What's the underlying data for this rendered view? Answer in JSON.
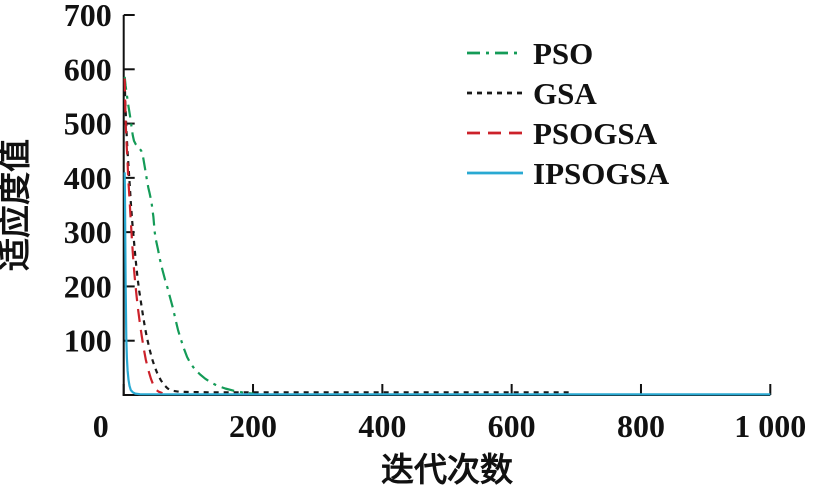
{
  "figure": {
    "background": "#ffffff",
    "axis_color": "#111111"
  },
  "chart_data": {
    "type": "line",
    "title": "",
    "xlabel": "迭代次数",
    "ylabel": "适应度值",
    "xlim": [
      0,
      1000
    ],
    "ylim": [
      0,
      700
    ],
    "grid": false,
    "legend_position": "upper-right-inside-no-border",
    "x_ticks": [
      {
        "value": 0,
        "label": "0"
      },
      {
        "value": 200,
        "label": "200"
      },
      {
        "value": 400,
        "label": "400"
      },
      {
        "value": 600,
        "label": "600"
      },
      {
        "value": 800,
        "label": "800"
      },
      {
        "value": 1000,
        "label": "1 000"
      }
    ],
    "y_ticks": [
      {
        "value": 100,
        "label": "100"
      },
      {
        "value": 200,
        "label": "200"
      },
      {
        "value": 300,
        "label": "300"
      },
      {
        "value": 400,
        "label": "400"
      },
      {
        "value": 500,
        "label": "500"
      },
      {
        "value": 600,
        "label": "600"
      },
      {
        "value": 700,
        "label": "700"
      }
    ],
    "series": [
      {
        "name": "PSO",
        "color": "#149b57",
        "line_style": "dash-dot",
        "points": [
          [
            1.5,
            586
          ],
          [
            3,
            570
          ],
          [
            5,
            552
          ],
          [
            7,
            535
          ],
          [
            9,
            520
          ],
          [
            11,
            505
          ],
          [
            12.5,
            490
          ],
          [
            14,
            478
          ],
          [
            16,
            468
          ],
          [
            19,
            461
          ],
          [
            23,
            456
          ],
          [
            27,
            450
          ],
          [
            30,
            438
          ],
          [
            32,
            424
          ],
          [
            34,
            410
          ],
          [
            36,
            395
          ],
          [
            38,
            382
          ],
          [
            40,
            372
          ],
          [
            43,
            355
          ],
          [
            46,
            328
          ],
          [
            48,
            300
          ],
          [
            50,
            285
          ],
          [
            53,
            268
          ],
          [
            56,
            250
          ],
          [
            60,
            230
          ],
          [
            64,
            212
          ],
          [
            68,
            196
          ],
          [
            72,
            178
          ],
          [
            76,
            161
          ],
          [
            80,
            140
          ],
          [
            84,
            120
          ],
          [
            88,
            104
          ],
          [
            93,
            86
          ],
          [
            98,
            70
          ],
          [
            104,
            57
          ],
          [
            111,
            46
          ],
          [
            118,
            38
          ],
          [
            126,
            30
          ],
          [
            135,
            23
          ],
          [
            145,
            17
          ],
          [
            157,
            12
          ],
          [
            170,
            8
          ],
          [
            183,
            5
          ],
          [
            196,
            3
          ],
          [
            208,
            2
          ]
        ]
      },
      {
        "name": "GSA",
        "color": "#1a1a1a",
        "line_style": "dotted",
        "points": [
          [
            1.5,
            578
          ],
          [
            2.5,
            540
          ],
          [
            3.5,
            508
          ],
          [
            5,
            470
          ],
          [
            6.5,
            438
          ],
          [
            8,
            410
          ],
          [
            9.5,
            385
          ],
          [
            11,
            355
          ],
          [
            13,
            322
          ],
          [
            15,
            295
          ],
          [
            17,
            268
          ],
          [
            19,
            243
          ],
          [
            21.5,
            215
          ],
          [
            24,
            192
          ],
          [
            27,
            168
          ],
          [
            30,
            145
          ],
          [
            33,
            124
          ],
          [
            36,
            105
          ],
          [
            40,
            84
          ],
          [
            44,
            66
          ],
          [
            48,
            52
          ],
          [
            52,
            40
          ],
          [
            57,
            28
          ],
          [
            62,
            19
          ],
          [
            68,
            12
          ],
          [
            75,
            8
          ],
          [
            85,
            6
          ],
          [
            100,
            5.5
          ],
          [
            130,
            5
          ],
          [
            400,
            5
          ],
          [
            690,
            5
          ]
        ]
      },
      {
        "name": "PSOGSA",
        "color": "#cc212a",
        "line_style": "dashed",
        "points": [
          [
            1.5,
            583
          ],
          [
            2,
            555
          ],
          [
            2.5,
            530
          ],
          [
            3,
            505
          ],
          [
            4,
            475
          ],
          [
            5,
            452
          ],
          [
            6,
            428
          ],
          [
            7,
            400
          ],
          [
            8,
            380
          ],
          [
            9.5,
            352
          ],
          [
            11,
            320
          ],
          [
            12.5,
            290
          ],
          [
            14,
            262
          ],
          [
            16,
            232
          ],
          [
            18,
            205
          ],
          [
            20,
            182
          ],
          [
            22,
            160
          ],
          [
            25,
            132
          ],
          [
            28,
            108
          ],
          [
            31,
            86
          ],
          [
            34,
            66
          ],
          [
            38,
            46
          ],
          [
            42,
            30
          ],
          [
            46,
            18
          ],
          [
            50,
            10
          ],
          [
            54,
            6
          ],
          [
            60,
            3.5
          ]
        ]
      },
      {
        "name": "IPSOGSA",
        "color": "#29a9d2",
        "line_style": "solid",
        "points": [
          [
            1.5,
            410
          ],
          [
            2,
            360
          ],
          [
            2.5,
            285
          ],
          [
            3,
            210
          ],
          [
            3.5,
            150
          ],
          [
            4,
            105
          ],
          [
            5,
            68
          ],
          [
            6,
            45
          ],
          [
            7.5,
            28
          ],
          [
            9,
            17
          ],
          [
            11,
            9
          ],
          [
            14,
            5
          ],
          [
            18,
            2.5
          ],
          [
            25,
            1.5
          ],
          [
            100,
            1.2
          ],
          [
            1000,
            1.2
          ]
        ]
      }
    ]
  }
}
